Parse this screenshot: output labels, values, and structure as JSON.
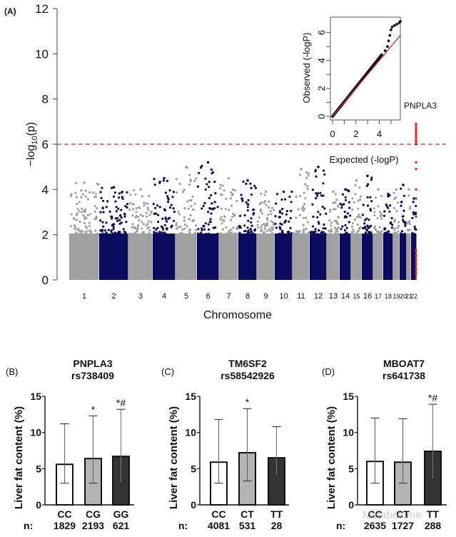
{
  "chart_data": [
    {
      "panel": "(A)",
      "type": "scatter",
      "subtype": "manhattan",
      "xlabel": "Chromosome",
      "ylabel": "-log10(p)",
      "ylim": [
        0,
        12
      ],
      "yticks": [
        0,
        2,
        4,
        6,
        8,
        10,
        12
      ],
      "threshold": 6,
      "threshold_color": "#e0262a",
      "colors": {
        "odd": "#a0a0a0",
        "even": "#0a0a5e",
        "highlight": "#e0262a"
      },
      "chromosomes": [
        "1",
        "2",
        "3",
        "4",
        "5",
        "6",
        "7",
        "8",
        "9",
        "10",
        "11",
        "12",
        "13",
        "14",
        "15",
        "16",
        "17",
        "18",
        "19",
        "20",
        "21",
        "22"
      ],
      "peak_neglog10p": [
        4.3,
        4.1,
        4.0,
        4.5,
        5.0,
        5.2,
        4.5,
        4.4,
        3.9,
        3.9,
        4.9,
        5.0,
        3.9,
        4.0,
        4.4,
        4.6,
        4.0,
        3.8,
        4.0,
        4.2,
        4.0,
        3.6
      ],
      "highlight_snps": {
        "chromosome": "22",
        "label": "PNPLA3",
        "values": [
          6.9,
          6.8,
          6.7,
          6.6,
          6.5,
          6.4,
          6.3,
          6.2,
          6.1,
          6.0,
          5.2,
          4.9,
          4.0,
          3.6,
          2.8,
          1.3,
          1.1,
          0.9,
          0.7,
          0.5,
          0.3
        ]
      },
      "inset": {
        "type": "scatter",
        "subtype": "qq",
        "xlabel": "Expected (-logP)",
        "ylabel": "Observed (-logP)",
        "xticks": [
          0,
          2,
          4
        ],
        "yticks": [
          0,
          2,
          4,
          6
        ],
        "xlim": [
          0,
          5.8
        ],
        "ylim": [
          0,
          6.9
        ],
        "reference_line": "y = x",
        "tail_points": [
          [
            4.2,
            4.4
          ],
          [
            4.5,
            4.7
          ],
          [
            4.7,
            5.0
          ],
          [
            4.8,
            5.4
          ],
          [
            4.9,
            5.8
          ],
          [
            5.0,
            6.2
          ],
          [
            5.1,
            6.4
          ],
          [
            5.3,
            6.5
          ],
          [
            5.5,
            6.6
          ],
          [
            5.7,
            6.7
          ],
          [
            5.8,
            6.8
          ]
        ]
      }
    },
    {
      "panel": "(B)",
      "type": "bar",
      "title": "PNPLA3",
      "subtitle": "rs738409",
      "ylabel": "Liver fat content (%)",
      "ylim": [
        0,
        15
      ],
      "yticks": [
        0,
        5,
        10,
        15
      ],
      "n_label": "n:",
      "categories": [
        "CC",
        "CG",
        "GG"
      ],
      "n": [
        "1829",
        "2193",
        "621"
      ],
      "values": [
        5.6,
        6.4,
        6.7
      ],
      "err_low": [
        3.0,
        3.0,
        3.1
      ],
      "err_high": [
        11.2,
        12.3,
        13.2
      ],
      "annotations": [
        "",
        "*",
        "*#"
      ],
      "fills": [
        "#ffffff",
        "#b4b4b4",
        "#333333"
      ]
    },
    {
      "panel": "(C)",
      "type": "bar",
      "title": "TM6SF2",
      "subtitle": "rs58542926",
      "ylabel": "Liver fat content (%)",
      "ylim": [
        0,
        15
      ],
      "yticks": [
        0,
        5,
        10,
        15
      ],
      "n_label": "n:",
      "categories": [
        "CC",
        "CT",
        "TT"
      ],
      "n": [
        "4081",
        "531",
        "28"
      ],
      "values": [
        5.9,
        7.2,
        6.5
      ],
      "err_low": [
        3.0,
        3.3,
        4.1
      ],
      "err_high": [
        11.8,
        13.3,
        10.8
      ],
      "annotations": [
        "",
        "*",
        ""
      ],
      "fills": [
        "#ffffff",
        "#b4b4b4",
        "#333333"
      ]
    },
    {
      "panel": "(D)",
      "type": "bar",
      "title": "MBOAT7",
      "subtitle": "rs641738",
      "ylabel": "Liver fat content (%)",
      "ylim": [
        0,
        15
      ],
      "yticks": [
        0,
        5,
        10,
        15
      ],
      "n_label": "n:",
      "categories": [
        "CC",
        "CT",
        "TT"
      ],
      "n": [
        "2635",
        "1727",
        "288"
      ],
      "values": [
        6.0,
        5.9,
        7.4
      ],
      "err_low": [
        3.0,
        3.0,
        3.6
      ],
      "err_high": [
        12.0,
        11.9,
        13.9
      ],
      "annotations": [
        "",
        "",
        "*#"
      ],
      "fills": [
        "#ffffff",
        "#b4b4b4",
        "#333333"
      ]
    }
  ],
  "watermark": "Metabolome"
}
